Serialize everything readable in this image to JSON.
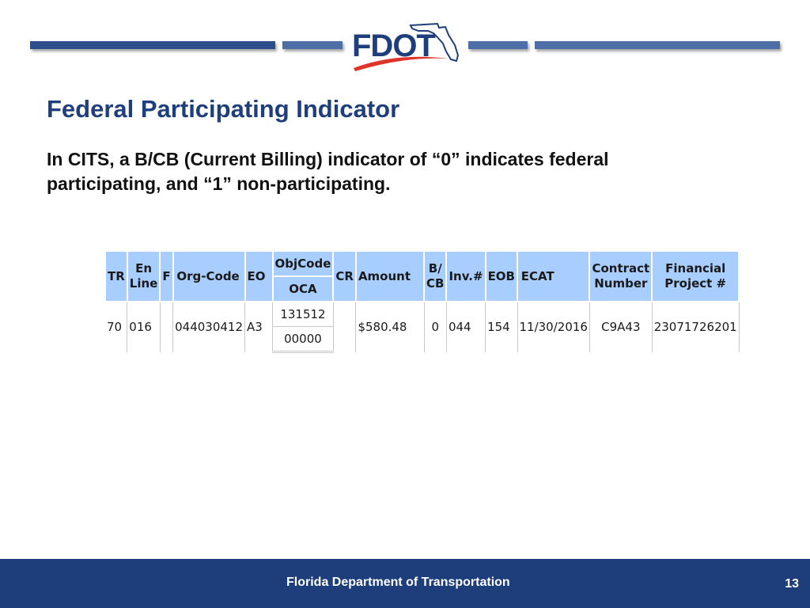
{
  "logo": {
    "text": "FDOT",
    "icon": "florida-state-outline"
  },
  "slide": {
    "title": "Federal Participating Indicator",
    "body": "In CITS, a B/CB (Current Billing) indicator of “0” indicates federal participating, and “1” non-participating."
  },
  "table": {
    "headers": {
      "tr": "TR",
      "en_line": [
        "En",
        "Line"
      ],
      "f": "F",
      "org_code": "Org-Code",
      "eo": "EO",
      "objcode": "ObjCode",
      "oca": "OCA",
      "cr": "CR",
      "amount": "Amount",
      "bcb": [
        "B/",
        "CB"
      ],
      "inv": "Inv.#",
      "eob": "EOB",
      "ecat": "ECAT",
      "contract": [
        "Contract",
        "Number"
      ],
      "financial": [
        "Financial",
        "Project #"
      ]
    },
    "row": {
      "tr": "70",
      "en_line": "016",
      "f": "",
      "org_code": "044030412",
      "eo": "A3",
      "objcode": "131512",
      "oca": "00000",
      "cr": "",
      "amount": "$580.48",
      "bcb": "0",
      "inv": "044",
      "eob": "154",
      "ecat": "11/30/2016",
      "contract": "C9A43",
      "financial": "23071726201"
    }
  },
  "footer": {
    "org": "Florida Department of Transportation",
    "page": "13"
  },
  "colors": {
    "brand_blue": "#1f3f7c",
    "footer_bg": "#1d3e7a",
    "header_cell": "#a8ceff",
    "logo_swoosh": "#e0332a"
  }
}
